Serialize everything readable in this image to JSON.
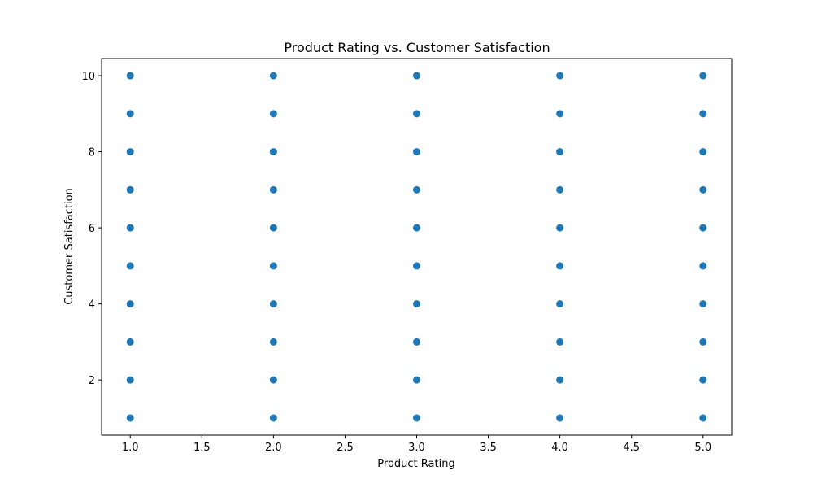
{
  "chart_data": {
    "type": "scatter",
    "title": "Product Rating vs. Customer Satisfaction",
    "xlabel": "Product Rating",
    "ylabel": "Customer Satisfaction",
    "xlim": [
      0.8,
      5.2
    ],
    "ylim": [
      0.55,
      10.45
    ],
    "xticks": [
      1.0,
      1.5,
      2.0,
      2.5,
      3.0,
      3.5,
      4.0,
      4.5,
      5.0
    ],
    "xtick_labels": [
      "1.0",
      "1.5",
      "2.0",
      "2.5",
      "3.0",
      "3.5",
      "4.0",
      "4.5",
      "5.0"
    ],
    "yticks": [
      2,
      4,
      6,
      8,
      10
    ],
    "ytick_labels": [
      "2",
      "4",
      "6",
      "8",
      "10"
    ],
    "grid": false,
    "marker_color": "#1f77b4",
    "series": [
      {
        "x": [
          1,
          1,
          1,
          1,
          1,
          1,
          1,
          1,
          1,
          1,
          2,
          2,
          2,
          2,
          2,
          2,
          2,
          2,
          2,
          2,
          3,
          3,
          3,
          3,
          3,
          3,
          3,
          3,
          3,
          3,
          4,
          4,
          4,
          4,
          4,
          4,
          4,
          4,
          4,
          4,
          5,
          5,
          5,
          5,
          5,
          5,
          5,
          5,
          5,
          5
        ],
        "y": [
          1,
          2,
          3,
          4,
          5,
          6,
          7,
          8,
          9,
          10,
          1,
          2,
          3,
          4,
          5,
          6,
          7,
          8,
          9,
          10,
          1,
          2,
          3,
          4,
          5,
          6,
          7,
          8,
          9,
          10,
          1,
          2,
          3,
          4,
          5,
          6,
          7,
          8,
          9,
          10,
          1,
          2,
          3,
          4,
          5,
          6,
          7,
          8,
          9,
          10
        ]
      }
    ]
  }
}
